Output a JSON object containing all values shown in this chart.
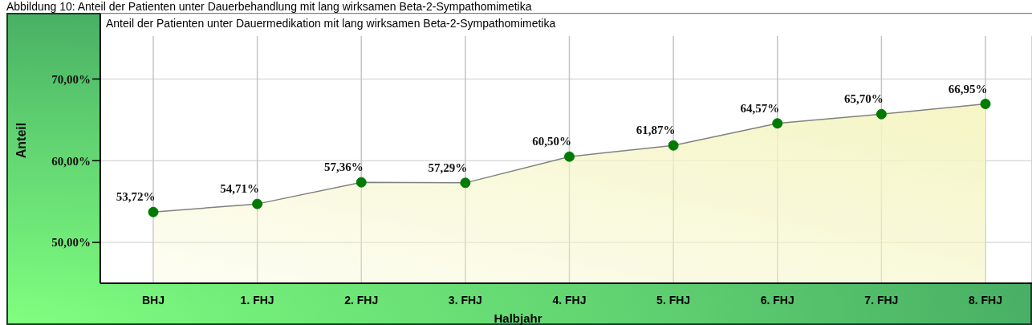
{
  "chart_data": {
    "type": "area",
    "title": "Anteil der Patienten unter Dauermedikation mit lang wirksamen Beta-2-Sympathomimetika",
    "xlabel": "Halbjahr",
    "ylabel": "Anteil",
    "annotations": [
      "Abbildung 10: Anteil der Patienten unter Dauerbehandlung mit lang wirksamen Beta-2-Sympathomimetika"
    ],
    "categories": [
      "BHJ",
      "1. FHJ",
      "2. FHJ",
      "3. FHJ",
      "4. FHJ",
      "5. FHJ",
      "6. FHJ",
      "7. FHJ",
      "8. FHJ"
    ],
    "series": [
      {
        "color": "#f5f5c5",
        "values": [
          53.72,
          54.71,
          57.36,
          57.29,
          60.5,
          61.87,
          64.57,
          65.7,
          66.95
        ],
        "value_labels": [
          "53,72%",
          "54,71%",
          "57,36%",
          "57,29%",
          "60,50%",
          "61,87%",
          "64,57%",
          "65,70%",
          "66,95%"
        ]
      }
    ],
    "ylim": [
      45,
      78
    ],
    "yticks": [
      {
        "value": 50,
        "label": "50,00%"
      },
      {
        "value": 60,
        "label": "60,00%"
      },
      {
        "value": 70,
        "label": "70,00%"
      }
    ],
    "grid": true,
    "marker": "circle"
  }
}
